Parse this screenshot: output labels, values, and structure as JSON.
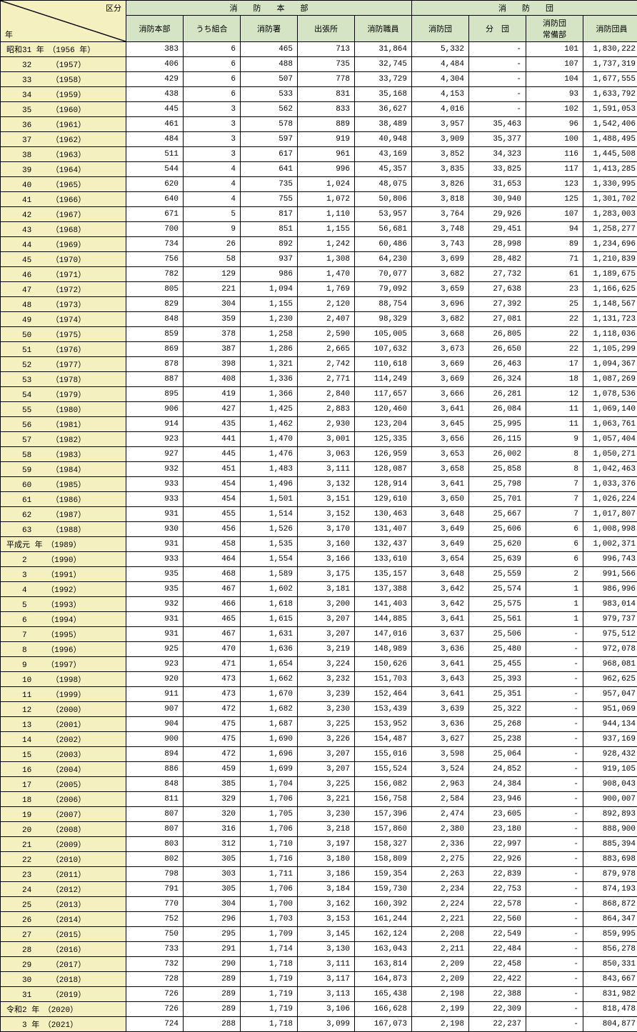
{
  "header": {
    "diag_top": "区分",
    "diag_bot": "年",
    "group1": "消　　防　　本　　部",
    "group2": "消　　防　　団",
    "cols": [
      "消防本部",
      "うち組合",
      "消防署",
      "出張所",
      "消防職員",
      "消防団",
      "分　団",
      "消防団\n常備部",
      "消防団員"
    ]
  },
  "groups": [
    {
      "start": true,
      "rows": [
        {
          "y": "昭和31 年　（1956 年）",
          "v": [
            "383",
            "6",
            "465",
            "713",
            "31,864",
            "5,332",
            "-",
            "101",
            "1,830,222"
          ]
        },
        {
          "y": "32　　　（1957）",
          "v": [
            "406",
            "6",
            "488",
            "735",
            "32,745",
            "4,484",
            "-",
            "107",
            "1,737,319"
          ]
        },
        {
          "y": "33　　　（1958）",
          "v": [
            "429",
            "6",
            "507",
            "778",
            "33,729",
            "4,304",
            "-",
            "104",
            "1,677,555"
          ]
        },
        {
          "y": "34　　　（1959）",
          "v": [
            "438",
            "6",
            "533",
            "831",
            "35,168",
            "4,153",
            "-",
            "93",
            "1,633,792"
          ]
        },
        {
          "y": "35　　　（1960）",
          "v": [
            "445",
            "3",
            "562",
            "833",
            "36,627",
            "4,016",
            "-",
            "102",
            "1,591,053"
          ]
        },
        {
          "y": "36　　　（1961）",
          "v": [
            "461",
            "3",
            "578",
            "889",
            "38,489",
            "3,957",
            "35,463",
            "96",
            "1,542,406"
          ]
        },
        {
          "y": "37　　　（1962）",
          "v": [
            "484",
            "3",
            "597",
            "919",
            "40,948",
            "3,909",
            "35,377",
            "100",
            "1,488,495"
          ]
        },
        {
          "y": "38　　　（1963）",
          "v": [
            "511",
            "3",
            "617",
            "961",
            "43,169",
            "3,852",
            "34,323",
            "116",
            "1,445,508"
          ]
        },
        {
          "y": "39　　　（1964）",
          "v": [
            "544",
            "4",
            "641",
            "996",
            "45,357",
            "3,835",
            "33,825",
            "117",
            "1,413,285"
          ]
        },
        {
          "y": "40　　　（1965）",
          "v": [
            "620",
            "4",
            "735",
            "1,024",
            "48,075",
            "3,826",
            "31,653",
            "123",
            "1,330,995"
          ]
        }
      ]
    },
    {
      "start": true,
      "rows": [
        {
          "y": "41　　　（1966）",
          "v": [
            "640",
            "4",
            "755",
            "1,072",
            "50,806",
            "3,818",
            "30,940",
            "125",
            "1,301,702"
          ]
        },
        {
          "y": "42　　　（1967）",
          "v": [
            "671",
            "5",
            "817",
            "1,110",
            "53,957",
            "3,764",
            "29,926",
            "107",
            "1,283,003"
          ]
        },
        {
          "y": "43　　　（1968）",
          "v": [
            "700",
            "9",
            "851",
            "1,155",
            "56,681",
            "3,748",
            "29,451",
            "94",
            "1,258,277"
          ]
        },
        {
          "y": "44　　　（1969）",
          "v": [
            "734",
            "26",
            "892",
            "1,242",
            "60,486",
            "3,743",
            "28,998",
            "89",
            "1,234,696"
          ]
        },
        {
          "y": "45　　　（1970）",
          "v": [
            "756",
            "58",
            "937",
            "1,308",
            "64,230",
            "3,699",
            "28,482",
            "71",
            "1,210,839"
          ]
        },
        {
          "y": "46　　　（1971）",
          "v": [
            "782",
            "129",
            "986",
            "1,470",
            "70,077",
            "3,682",
            "27,732",
            "61",
            "1,189,675"
          ]
        },
        {
          "y": "47　　　（1972）",
          "v": [
            "805",
            "221",
            "1,094",
            "1,769",
            "79,092",
            "3,659",
            "27,638",
            "23",
            "1,166,625"
          ]
        },
        {
          "y": "48　　　（1973）",
          "v": [
            "829",
            "304",
            "1,155",
            "2,120",
            "88,754",
            "3,696",
            "27,392",
            "25",
            "1,148,567"
          ]
        },
        {
          "y": "49　　　（1974）",
          "v": [
            "848",
            "359",
            "1,230",
            "2,407",
            "98,329",
            "3,682",
            "27,081",
            "22",
            "1,131,723"
          ]
        },
        {
          "y": "50　　　（1975）",
          "v": [
            "859",
            "378",
            "1,258",
            "2,590",
            "105,005",
            "3,668",
            "26,805",
            "22",
            "1,118,036"
          ]
        }
      ]
    },
    {
      "start": true,
      "rows": [
        {
          "y": "51　　　（1976）",
          "v": [
            "869",
            "387",
            "1,286",
            "2,665",
            "107,632",
            "3,673",
            "26,650",
            "22",
            "1,105,299"
          ]
        },
        {
          "y": "52　　　（1977）",
          "v": [
            "878",
            "398",
            "1,321",
            "2,742",
            "110,618",
            "3,669",
            "26,463",
            "17",
            "1,094,367"
          ]
        },
        {
          "y": "53　　　（1978）",
          "v": [
            "887",
            "408",
            "1,336",
            "2,771",
            "114,249",
            "3,669",
            "26,324",
            "18",
            "1,087,269"
          ]
        },
        {
          "y": "54　　　（1979）",
          "v": [
            "895",
            "419",
            "1,366",
            "2,840",
            "117,657",
            "3,666",
            "26,281",
            "12",
            "1,078,536"
          ]
        },
        {
          "y": "55　　　（1980）",
          "v": [
            "906",
            "427",
            "1,425",
            "2,883",
            "120,460",
            "3,641",
            "26,084",
            "11",
            "1,069,140"
          ]
        },
        {
          "y": "56　　　（1981）",
          "v": [
            "914",
            "435",
            "1,462",
            "2,930",
            "123,204",
            "3,645",
            "25,995",
            "11",
            "1,063,761"
          ]
        },
        {
          "y": "57　　　（1982）",
          "v": [
            "923",
            "441",
            "1,470",
            "3,001",
            "125,335",
            "3,656",
            "26,115",
            "9",
            "1,057,404"
          ]
        },
        {
          "y": "58　　　（1983）",
          "v": [
            "927",
            "445",
            "1,476",
            "3,063",
            "126,959",
            "3,653",
            "26,002",
            "8",
            "1,050,271"
          ]
        },
        {
          "y": "59　　　（1984）",
          "v": [
            "932",
            "451",
            "1,483",
            "3,111",
            "128,087",
            "3,658",
            "25,858",
            "8",
            "1,042,463"
          ]
        },
        {
          "y": "60　　　（1985）",
          "v": [
            "933",
            "454",
            "1,496",
            "3,132",
            "128,914",
            "3,641",
            "25,798",
            "7",
            "1,033,376"
          ]
        }
      ]
    },
    {
      "start": true,
      "rows": [
        {
          "y": "61　　　（1986）",
          "v": [
            "933",
            "454",
            "1,501",
            "3,151",
            "129,610",
            "3,650",
            "25,701",
            "7",
            "1,026,224"
          ]
        },
        {
          "y": "62　　　（1987）",
          "v": [
            "931",
            "455",
            "1,514",
            "3,152",
            "130,463",
            "3,648",
            "25,667",
            "7",
            "1,017,807"
          ]
        },
        {
          "y": "63　　　（1988）",
          "v": [
            "930",
            "456",
            "1,526",
            "3,170",
            "131,407",
            "3,649",
            "25,606",
            "6",
            "1,008,998"
          ]
        }
      ]
    },
    {
      "start": true,
      "rows": [
        {
          "y": "平成元 年　（1989）",
          "v": [
            "931",
            "458",
            "1,535",
            "3,160",
            "132,437",
            "3,649",
            "25,620",
            "6",
            "1,002,371"
          ]
        },
        {
          "y": "2　　　（1990）",
          "v": [
            "933",
            "464",
            "1,554",
            "3,166",
            "133,610",
            "3,654",
            "25,639",
            "6",
            "996,743"
          ]
        },
        {
          "y": "3　　　（1991）",
          "v": [
            "935",
            "468",
            "1,589",
            "3,175",
            "135,157",
            "3,648",
            "25,559",
            "2",
            "991,566"
          ]
        },
        {
          "y": "4　　　（1992）",
          "v": [
            "935",
            "467",
            "1,602",
            "3,181",
            "137,388",
            "3,642",
            "25,574",
            "1",
            "986,996"
          ]
        },
        {
          "y": "5　　　（1993）",
          "v": [
            "932",
            "466",
            "1,618",
            "3,200",
            "141,403",
            "3,642",
            "25,575",
            "1",
            "983,014"
          ]
        },
        {
          "y": "6　　　（1994）",
          "v": [
            "931",
            "465",
            "1,615",
            "3,207",
            "144,885",
            "3,641",
            "25,561",
            "1",
            "979,737"
          ]
        },
        {
          "y": "7　　　（1995）",
          "v": [
            "931",
            "467",
            "1,631",
            "3,207",
            "147,016",
            "3,637",
            "25,506",
            "-",
            "975,512"
          ]
        },
        {
          "y": "8　　　（1996）",
          "v": [
            "925",
            "470",
            "1,636",
            "3,219",
            "148,989",
            "3,636",
            "25,480",
            "-",
            "972,078"
          ]
        },
        {
          "y": "9　　　（1997）",
          "v": [
            "923",
            "471",
            "1,654",
            "3,224",
            "150,626",
            "3,641",
            "25,455",
            "-",
            "968,081"
          ]
        },
        {
          "y": "10　　　（1998）",
          "v": [
            "920",
            "473",
            "1,662",
            "3,232",
            "151,703",
            "3,643",
            "25,393",
            "-",
            "962,625"
          ]
        }
      ]
    },
    {
      "start": true,
      "rows": [
        {
          "y": "11　　　（1999）",
          "v": [
            "911",
            "473",
            "1,670",
            "3,239",
            "152,464",
            "3,641",
            "25,351",
            "-",
            "957,047"
          ]
        },
        {
          "y": "12　　　（2000）",
          "v": [
            "907",
            "472",
            "1,682",
            "3,230",
            "153,439",
            "3,639",
            "25,322",
            "-",
            "951,069"
          ]
        },
        {
          "y": "13　　　（2001）",
          "v": [
            "904",
            "475",
            "1,687",
            "3,225",
            "153,952",
            "3,636",
            "25,268",
            "-",
            "944,134"
          ]
        },
        {
          "y": "14　　　（2002）",
          "v": [
            "900",
            "475",
            "1,690",
            "3,226",
            "154,487",
            "3,627",
            "25,238",
            "-",
            "937,169"
          ]
        },
        {
          "y": "15　　　（2003）",
          "v": [
            "894",
            "472",
            "1,696",
            "3,207",
            "155,016",
            "3,598",
            "25,064",
            "-",
            "928,432"
          ]
        },
        {
          "y": "16　　　（2004）",
          "v": [
            "886",
            "459",
            "1,699",
            "3,207",
            "155,524",
            "3,524",
            "24,852",
            "-",
            "919,105"
          ]
        },
        {
          "y": "17　　　（2005）",
          "v": [
            "848",
            "385",
            "1,704",
            "3,225",
            "156,082",
            "2,963",
            "24,384",
            "-",
            "908,043"
          ]
        },
        {
          "y": "18　　　（2006）",
          "v": [
            "811",
            "329",
            "1,706",
            "3,221",
            "156,758",
            "2,584",
            "23,946",
            "-",
            "900,007"
          ]
        },
        {
          "y": "19　　　（2007）",
          "v": [
            "807",
            "320",
            "1,705",
            "3,230",
            "157,396",
            "2,474",
            "23,605",
            "-",
            "892,893"
          ]
        },
        {
          "y": "20　　　（2008）",
          "v": [
            "807",
            "316",
            "1,706",
            "3,218",
            "157,860",
            "2,380",
            "23,180",
            "-",
            "888,900"
          ]
        }
      ]
    },
    {
      "start": true,
      "rows": [
        {
          "y": "21　　　（2009）",
          "v": [
            "803",
            "312",
            "1,710",
            "3,197",
            "158,327",
            "2,336",
            "22,997",
            "-",
            "885,394"
          ]
        },
        {
          "y": "22　　　（2010）",
          "v": [
            "802",
            "305",
            "1,716",
            "3,180",
            "158,809",
            "2,275",
            "22,926",
            "-",
            "883,698"
          ]
        },
        {
          "y": "23　　　（2011）",
          "v": [
            "798",
            "303",
            "1,711",
            "3,186",
            "159,354",
            "2,263",
            "22,839",
            "-",
            "879,978"
          ]
        },
        {
          "y": "24　　　（2012）",
          "v": [
            "791",
            "305",
            "1,706",
            "3,184",
            "159,730",
            "2,234",
            "22,753",
            "-",
            "874,193"
          ]
        },
        {
          "y": "25　　　（2013）",
          "v": [
            "770",
            "304",
            "1,700",
            "3,162",
            "160,392",
            "2,224",
            "22,578",
            "-",
            "868,872"
          ]
        },
        {
          "y": "26　　　（2014）",
          "v": [
            "752",
            "296",
            "1,703",
            "3,153",
            "161,244",
            "2,221",
            "22,560",
            "-",
            "864,347"
          ]
        },
        {
          "y": "27　　　（2015）",
          "v": [
            "750",
            "295",
            "1,709",
            "3,145",
            "162,124",
            "2,208",
            "22,549",
            "-",
            "859,995"
          ]
        },
        {
          "y": "28　　　（2016）",
          "v": [
            "733",
            "291",
            "1,714",
            "3,130",
            "163,043",
            "2,211",
            "22,484",
            "-",
            "856,278"
          ]
        },
        {
          "y": "29　　　（2017）",
          "v": [
            "732",
            "290",
            "1,718",
            "3,111",
            "163,814",
            "2,209",
            "22,458",
            "-",
            "850,331"
          ]
        },
        {
          "y": "30　　　（2018）",
          "v": [
            "728",
            "289",
            "1,719",
            "3,117",
            "164,873",
            "2,209",
            "22,422",
            "-",
            "843,667"
          ]
        }
      ]
    },
    {
      "start": true,
      "rows": [
        {
          "y": "31　　　（2019）",
          "v": [
            "726",
            "289",
            "1,719",
            "3,113",
            "165,438",
            "2,198",
            "22,388",
            "-",
            "831,982"
          ]
        }
      ]
    },
    {
      "start": true,
      "rows": [
        {
          "y": "令和2 年　（2020）",
          "v": [
            "726",
            "289",
            "1,719",
            "3,106",
            "166,628",
            "2,199",
            "22,309",
            "-",
            "818,478"
          ]
        },
        {
          "y": "3 年　（2021）",
          "v": [
            "724",
            "288",
            "1,718",
            "3,099",
            "167,073",
            "2,198",
            "22,237",
            "-",
            "804,877"
          ]
        }
      ]
    }
  ]
}
